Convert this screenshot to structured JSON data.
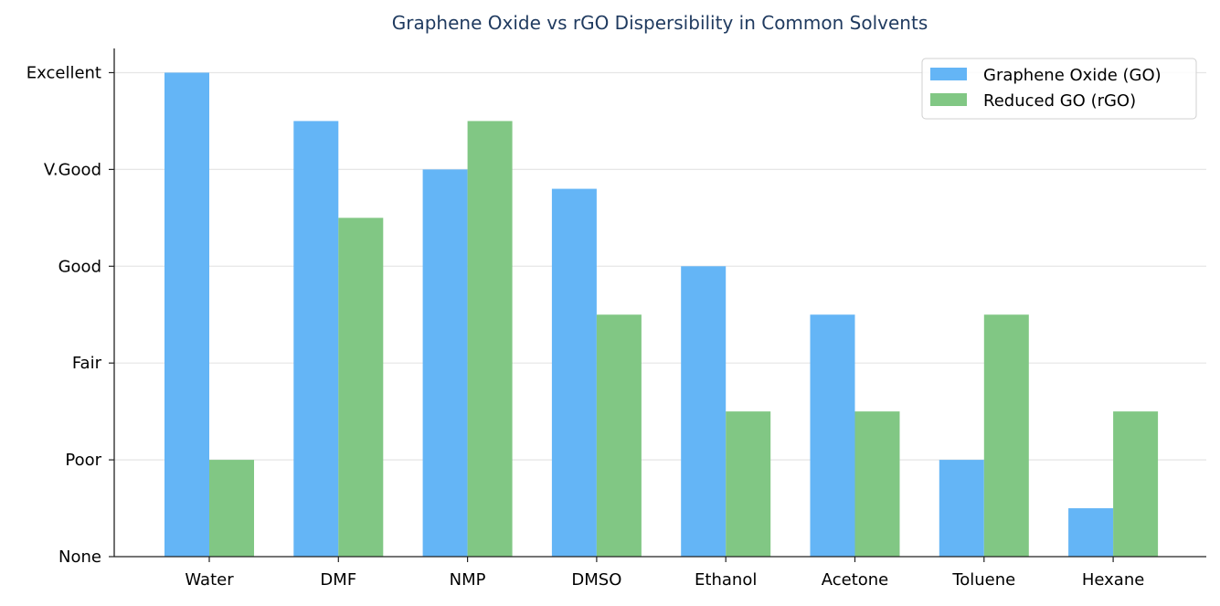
{
  "chart_data": {
    "type": "bar",
    "title": "Graphene Oxide vs rGO Dispersibility in Common Solvents",
    "xlabel": "",
    "ylabel": "",
    "categories": [
      "Water",
      "DMF",
      "NMP",
      "DMSO",
      "Ethanol",
      "Acetone",
      "Toluene",
      "Hexane"
    ],
    "series": [
      {
        "name": "Graphene Oxide (GO)",
        "color": "#64B5F6",
        "values": [
          5,
          4.5,
          4,
          3.8,
          3,
          2.5,
          1,
          0.5
        ]
      },
      {
        "name": "Reduced GO (rGO)",
        "color": "#81C784",
        "values": [
          1,
          3.5,
          4.5,
          2.5,
          1.5,
          1.5,
          2.5,
          1.5
        ]
      }
    ],
    "yticks": [
      0,
      1,
      2,
      3,
      4,
      5
    ],
    "ytick_labels": [
      "None",
      "Poor",
      "Fair",
      "Good",
      "V.Good",
      "Excellent"
    ],
    "ylim": [
      0,
      5.25
    ],
    "grid": "horizontal",
    "legend_position": "top-right",
    "title_color": "#1F3A5F"
  }
}
